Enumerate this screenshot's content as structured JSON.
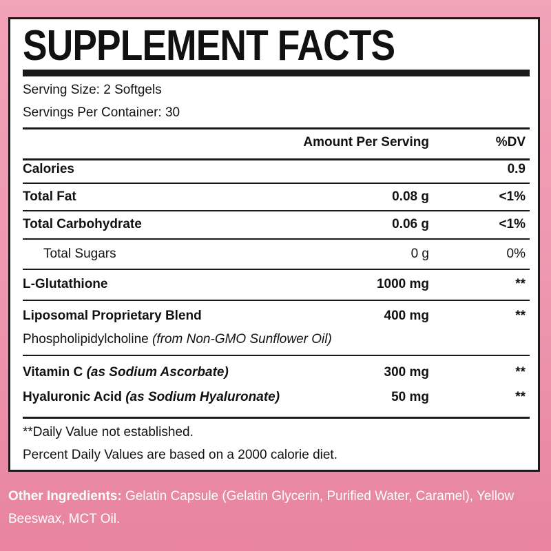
{
  "title": "SUPPLEMENT FACTS",
  "serving_size": "Serving Size: 2 Softgels",
  "servings_per_container": "Servings Per Container: 30",
  "header": {
    "amount": "Amount Per Serving",
    "dv": "%DV"
  },
  "rows": [
    {
      "name": "Calories",
      "amount": "",
      "dv": "0.9"
    },
    {
      "name": "Total Fat",
      "amount": "0.08 g",
      "dv": "<1%"
    },
    {
      "name": "Total Carbohydrate",
      "amount": "0.06 g",
      "dv": "<1%"
    },
    {
      "name": "Total Sugars",
      "amount": "0 g",
      "dv": "0%"
    },
    {
      "name": "L-Glutathione",
      "amount": "1000 mg",
      "dv": "**"
    },
    {
      "name": "Liposomal Proprietary Blend",
      "amount": "400 mg",
      "dv": "**",
      "sub": "Phospholipidylcholine",
      "sub_note": "(from Non-GMO Sunflower Oil)"
    },
    {
      "name": "Vitamin C",
      "note": "(as Sodium Ascorbate)",
      "amount": "300 mg",
      "dv": "**"
    },
    {
      "name": "Hyaluronic Acid",
      "note": "(as Sodium Hyaluronate)",
      "amount": "50 mg",
      "dv": "**"
    }
  ],
  "footnotes": [
    "**Daily Value not established.",
    "Percent Daily Values are based on a 2000 calorie diet."
  ],
  "other_ingredients": {
    "label": "Other Ingredients:",
    "text": " Gelatin Capsule (Gelatin Glycerin, Purified Water, Caramel), Yellow Beeswax, MCT Oil."
  },
  "colors": {
    "background": "#ee97b0",
    "panel": "#ffffff",
    "text": "#111111"
  }
}
